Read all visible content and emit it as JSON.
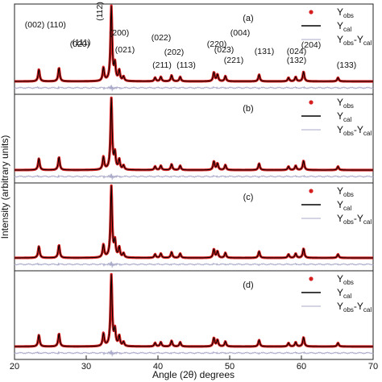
{
  "chart_data": {
    "type": "line",
    "xlabel": "Angle (2θ) degrees",
    "ylabel": "Intensity (arbitrary units)",
    "xlim": [
      20,
      70
    ],
    "xticks": [
      "20",
      "30",
      "40",
      "50",
      "60",
      "70"
    ],
    "legend_position": "top-right",
    "legend": [
      {
        "key": "obs",
        "base": "Y",
        "sub": "obs",
        "color": "#d62020",
        "marker": "dot"
      },
      {
        "key": "cal",
        "base": "Y",
        "sub": "cal",
        "color": "#000000",
        "marker": "line"
      },
      {
        "key": "diff",
        "base": "Y",
        "sub": "obs",
        "mid": "-Y",
        "sub2": "cal",
        "color": "#a8a8c8",
        "marker": "line"
      }
    ],
    "panels": [
      "(a)",
      "(b)",
      "(c)",
      "(d)"
    ],
    "reflections": [
      {
        "label": "(002)",
        "x": 23.4
      },
      {
        "label": "(110)",
        "x": 26.2
      },
      {
        "label": "(111)",
        "x": 29.0
      },
      {
        "label": "(020)",
        "x": 32.4
      },
      {
        "label": "(112)",
        "x": 33.5
      },
      {
        "label": "(200)",
        "x": 34.6
      },
      {
        "label": "(021)",
        "x": 36.1
      },
      {
        "label": "(211)",
        "x": 39.6
      },
      {
        "label": "(022)",
        "x": 40.8
      },
      {
        "label": "(202)",
        "x": 41.9
      },
      {
        "label": "(113)",
        "x": 43.2
      },
      {
        "label": "(220)",
        "x": 47.8
      },
      {
        "label": "(004)",
        "x": 48.3
      },
      {
        "label": "(023)",
        "x": 48.8
      },
      {
        "label": "(221)",
        "x": 50.3
      },
      {
        "label": "(131)",
        "x": 54.1
      },
      {
        "label": "(132)",
        "x": 58.2
      },
      {
        "label": "(024)",
        "x": 59.2
      },
      {
        "label": "(204)",
        "x": 60.3
      },
      {
        "label": "(133)",
        "x": 65.1
      }
    ],
    "peaks": [
      {
        "x": 23.4,
        "h": 0.16
      },
      {
        "x": 26.2,
        "h": 0.18
      },
      {
        "x": 32.4,
        "h": 0.18
      },
      {
        "x": 33.5,
        "h": 1.0
      },
      {
        "x": 34.0,
        "h": 0.22
      },
      {
        "x": 34.6,
        "h": 0.14
      },
      {
        "x": 35.2,
        "h": 0.06
      },
      {
        "x": 39.6,
        "h": 0.05
      },
      {
        "x": 40.4,
        "h": 0.06
      },
      {
        "x": 41.9,
        "h": 0.08
      },
      {
        "x": 43.1,
        "h": 0.06
      },
      {
        "x": 47.8,
        "h": 0.12
      },
      {
        "x": 48.3,
        "h": 0.09
      },
      {
        "x": 49.4,
        "h": 0.07
      },
      {
        "x": 54.1,
        "h": 0.09
      },
      {
        "x": 58.2,
        "h": 0.05
      },
      {
        "x": 59.2,
        "h": 0.06
      },
      {
        "x": 60.3,
        "h": 0.13
      },
      {
        "x": 65.1,
        "h": 0.05
      }
    ]
  }
}
